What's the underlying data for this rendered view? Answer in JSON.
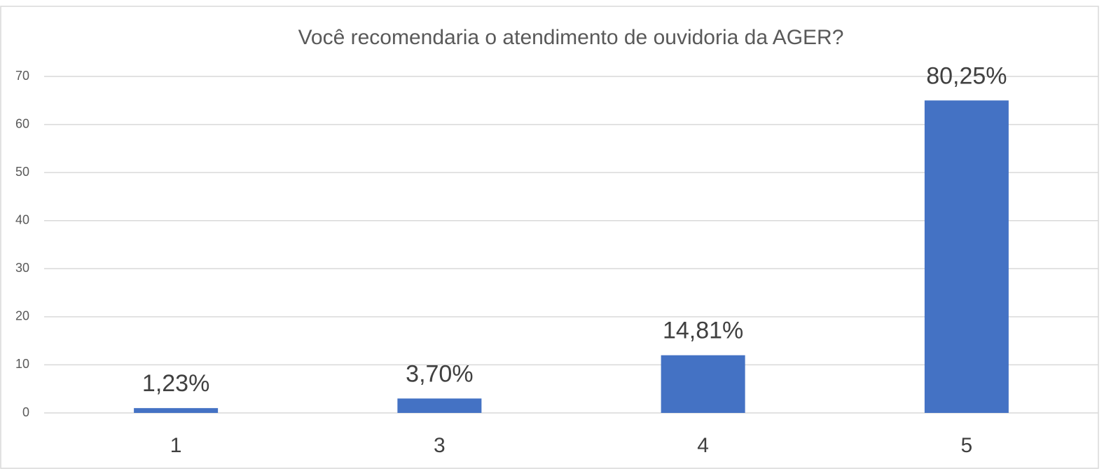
{
  "chart_data": {
    "type": "bar",
    "title": "Você recomendaria o atendimento de ouvidoria da AGER?",
    "categories": [
      "1",
      "3",
      "4",
      "5"
    ],
    "values": [
      1,
      3,
      12,
      65
    ],
    "value_labels": [
      "1,23%",
      "3,70%",
      "14,81%",
      "80,25%"
    ],
    "color": "#4472c4",
    "ylim": [
      0,
      70
    ],
    "yticks": [
      0,
      10,
      20,
      30,
      40,
      50,
      60,
      70
    ],
    "grid": true
  }
}
